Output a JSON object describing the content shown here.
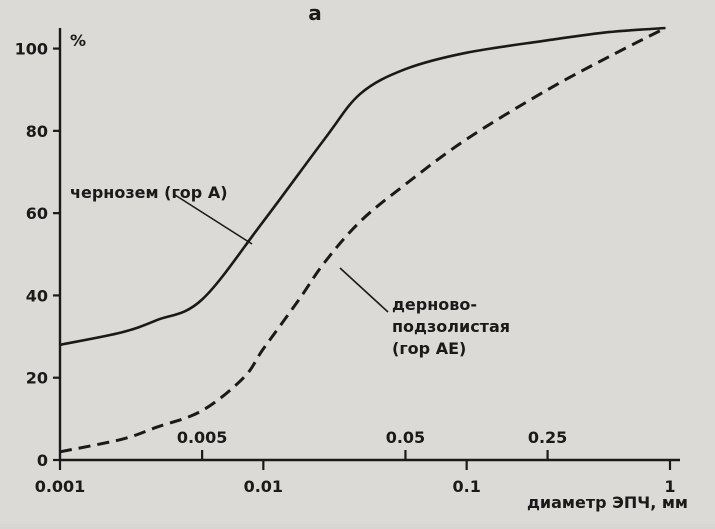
{
  "chart_data": {
    "type": "line",
    "panel_label": "а",
    "title": "",
    "ylabel": "%",
    "xlabel": "диаметр ЭПЧ, мм",
    "x_scale": "log",
    "xlim": [
      0.001,
      1
    ],
    "ylim": [
      0,
      105
    ],
    "y_ticks": [
      0,
      20,
      40,
      60,
      80,
      100
    ],
    "y_tick_labels": [
      "0",
      "20",
      "40",
      "60",
      "80",
      "100"
    ],
    "x_ticks_lower": [
      0.001,
      0.01,
      0.1,
      1
    ],
    "x_tick_labels_lower": [
      "0.001",
      "0.01",
      "0.1",
      "1"
    ],
    "x_ticks_upper": [
      0.005,
      0.05,
      0.25
    ],
    "x_tick_labels_upper": [
      "0.005",
      "0.05",
      "0.25"
    ],
    "grid": false,
    "series": [
      {
        "name": "чернозем (гор А)",
        "style": "solid",
        "x": [
          0.001,
          0.002,
          0.003,
          0.005,
          0.01,
          0.02,
          0.03,
          0.05,
          0.1,
          0.25,
          0.5,
          0.95
        ],
        "y": [
          28,
          31,
          34,
          39,
          58,
          78,
          89,
          95,
          99,
          102,
          104,
          105
        ]
      },
      {
        "name": "дерново-подзолистая (гор АЕ)",
        "style": "dashed",
        "x": [
          0.001,
          0.002,
          0.003,
          0.005,
          0.008,
          0.01,
          0.015,
          0.02,
          0.03,
          0.05,
          0.1,
          0.25,
          0.5,
          0.95
        ],
        "y": [
          2,
          5,
          8,
          12,
          20,
          27,
          39,
          48,
          58,
          67,
          78,
          90,
          98,
          105
        ]
      }
    ],
    "annotations": [
      {
        "lines": [
          "чернозем (гор А)"
        ]
      },
      {
        "lines": [
          "дерново-",
          "подзолистая",
          "(гор АЕ)"
        ]
      }
    ],
    "colors": {
      "ink": "#1a1a1a",
      "paper": "#dcdad6"
    }
  }
}
